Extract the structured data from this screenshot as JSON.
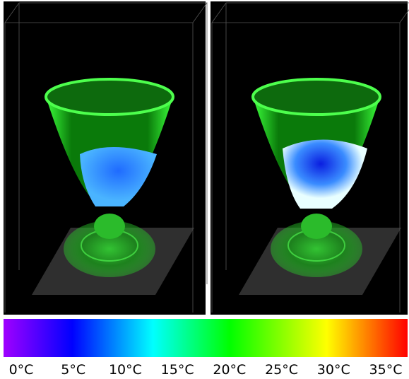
{
  "colorbar": {
    "ticks": [
      "0°C",
      "5°C",
      "10°C",
      "15°C",
      "20°C",
      "25°C",
      "30°C",
      "35°C"
    ]
  }
}
